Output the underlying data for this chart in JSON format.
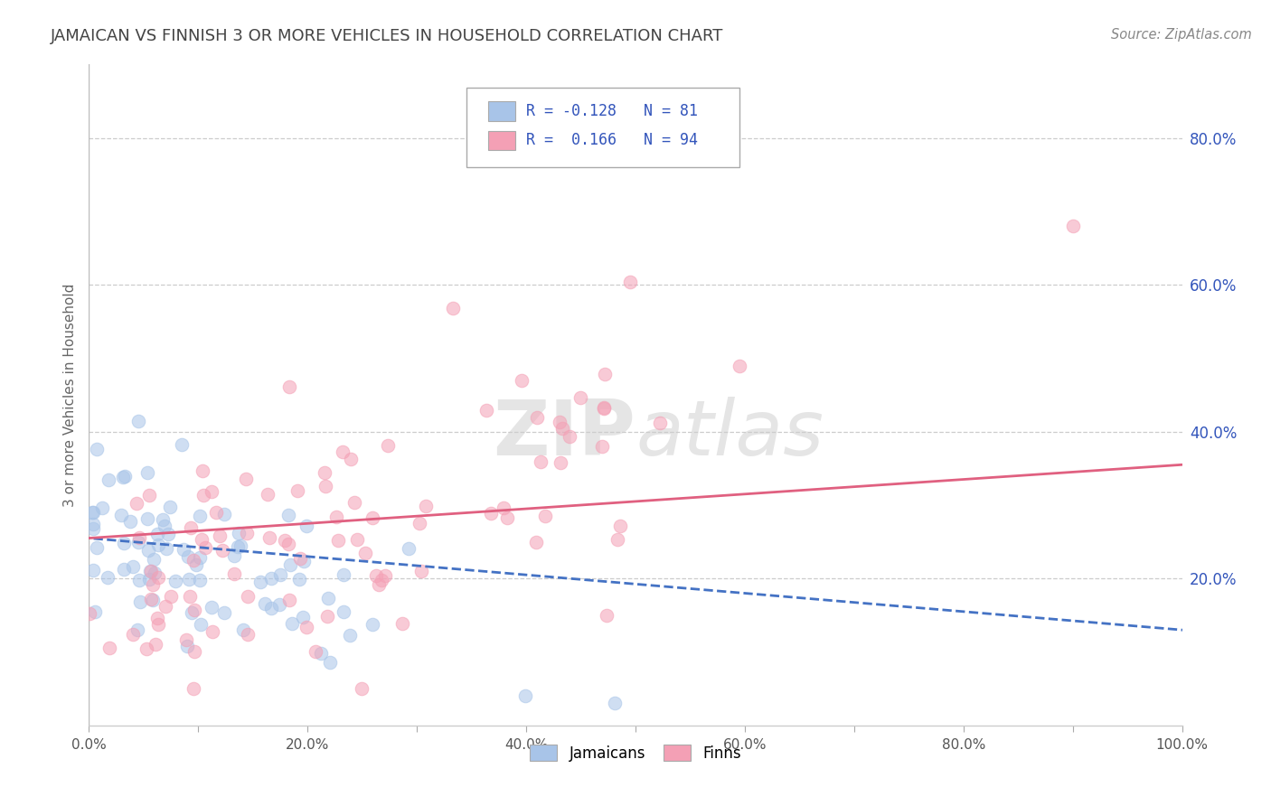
{
  "title": "JAMAICAN VS FINNISH 3 OR MORE VEHICLES IN HOUSEHOLD CORRELATION CHART",
  "source_text": "Source: ZipAtlas.com",
  "ylabel": "3 or more Vehicles in Household",
  "x_tick_labels": [
    "0.0%",
    "",
    "20.0%",
    "",
    "40.0%",
    "",
    "60.0%",
    "",
    "80.0%",
    "",
    "100.0%"
  ],
  "y_tick_labels_right": [
    "20.0%",
    "40.0%",
    "60.0%",
    "80.0%"
  ],
  "x_range": [
    0.0,
    1.0
  ],
  "y_range": [
    0.0,
    0.9
  ],
  "jamaican_R": -0.128,
  "jamaican_N": 81,
  "finn_R": 0.166,
  "finn_N": 94,
  "jamaican_color": "#A8C4E8",
  "finn_color": "#F4A0B5",
  "jamaican_line_color": "#4472C4",
  "finn_line_color": "#E06080",
  "watermark_zip": "ZIP",
  "watermark_atlas": "atlas",
  "watermark_color": "#D8D8D8",
  "background_color": "#FFFFFF",
  "grid_color": "#CCCCCC",
  "title_color": "#444444",
  "legend_color": "#3355BB",
  "right_axis_color": "#3355BB"
}
